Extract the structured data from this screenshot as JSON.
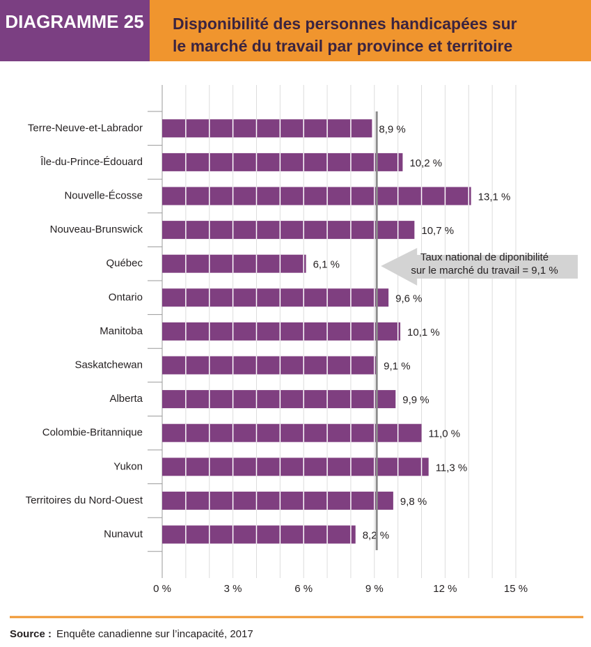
{
  "chart_data": {
    "type": "barh",
    "figure_label": "DIAGRAMME 25",
    "title": [
      "Disponibilité des personnes handicapées sur",
      "le marché du travail par province et territoire"
    ],
    "categories": [
      "Terre-Neuve-et-Labrador",
      "Île-du-Prince-Édouard",
      "Nouvelle-Écosse",
      "Nouveau-Brunswick",
      "Québec",
      "Ontario",
      "Manitoba",
      "Saskatchewan",
      "Alberta",
      "Colombie-Britannique",
      "Yukon",
      "Territoires du Nord-Ouest",
      "Nunavut"
    ],
    "values": [
      8.9,
      10.2,
      13.1,
      10.7,
      6.1,
      9.6,
      10.1,
      9.1,
      9.9,
      11.0,
      11.3,
      9.8,
      8.2
    ],
    "value_labels": [
      "8,9 %",
      "10,2 %",
      "13,1 %",
      "10,7 %",
      "6,1 %",
      "9,6 %",
      "10,1 %",
      "9,1 %",
      "9,9 %",
      "11,0 %",
      "11,3 %",
      "9,8 %",
      "8,2 %"
    ],
    "color": "#7f3f80",
    "xlim": [
      0,
      15
    ],
    "xticks": [
      {
        "value": 0,
        "label": "0 %"
      },
      {
        "value": 3,
        "label": "3 %"
      },
      {
        "value": 6,
        "label": "6 %"
      },
      {
        "value": 9,
        "label": "9 %"
      },
      {
        "value": 12,
        "label": "12 %"
      },
      {
        "value": 15,
        "label": "15 %"
      }
    ],
    "minor_xticks": [
      1,
      2,
      4,
      5,
      7,
      8,
      10,
      11,
      13,
      14
    ],
    "grid": true,
    "reference_line": {
      "value": 9.1,
      "color": "#8c8c8c",
      "label": [
        "Taux national de diponibilité",
        "sur le marché du travail = 9,1 %"
      ]
    },
    "source_label": "Source :",
    "source": "Enquête canadienne sur l’incapacité, 2017"
  }
}
